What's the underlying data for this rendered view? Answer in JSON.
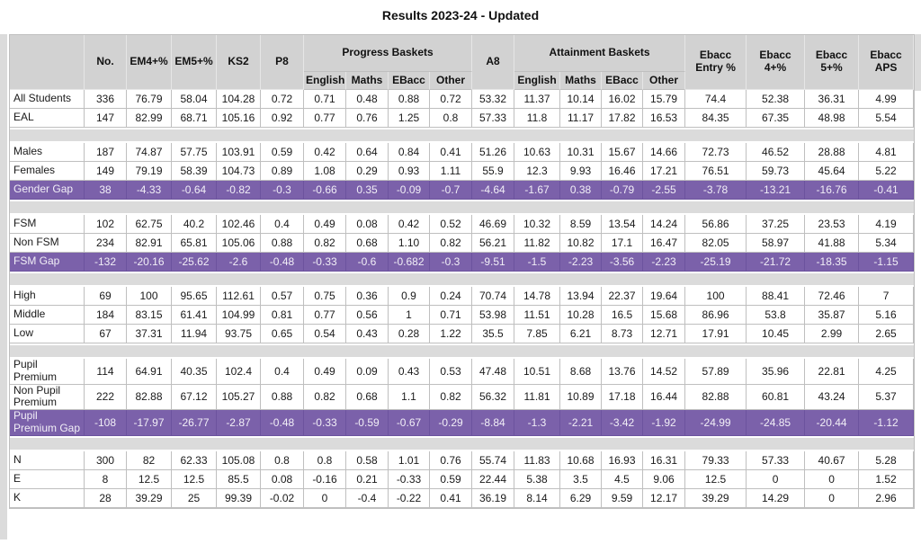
{
  "title": "Results 2023-24 - Updated",
  "colors": {
    "gap_row_bg": "#7B61AA",
    "gap_row_text": "#F2EFF7",
    "header_bg": "#D2D2D2",
    "spacer_bg": "#DBDBDB",
    "border": "#BFBFBF"
  },
  "table": {
    "headers": {
      "no": "No.",
      "em4": "EM4+%",
      "em5": "EM5+%",
      "ks2": "KS2",
      "p8": "P8",
      "progress_group": "Progress Baskets",
      "a8": "A8",
      "attainment_group": "Attainment Baskets",
      "ebacc_entry": "Ebacc Entry %",
      "ebacc_4": "Ebacc 4+%",
      "ebacc_5": "Ebacc 5+%",
      "ebacc_aps": "Ebacc APS"
    },
    "sub_headers": [
      "English",
      "Maths",
      "EBacc",
      "Other"
    ],
    "rows": [
      {
        "type": "data",
        "label": "All Students",
        "values": [
          "336",
          "76.79",
          "58.04",
          "104.28",
          "0.72",
          "0.71",
          "0.48",
          "0.88",
          "0.72",
          "53.32",
          "11.37",
          "10.14",
          "16.02",
          "15.79",
          "74.4",
          "52.38",
          "36.31",
          "4.99"
        ]
      },
      {
        "type": "data",
        "label": "EAL",
        "values": [
          "147",
          "82.99",
          "68.71",
          "105.16",
          "0.92",
          "0.77",
          "0.76",
          "1.25",
          "0.8",
          "57.33",
          "11.8",
          "11.17",
          "17.82",
          "16.53",
          "84.35",
          "67.35",
          "48.98",
          "5.54"
        ]
      },
      {
        "type": "spacer"
      },
      {
        "type": "data",
        "label": "Males",
        "values": [
          "187",
          "74.87",
          "57.75",
          "103.91",
          "0.59",
          "0.42",
          "0.64",
          "0.84",
          "0.41",
          "51.26",
          "10.63",
          "10.31",
          "15.67",
          "14.66",
          "72.73",
          "46.52",
          "28.88",
          "4.81"
        ]
      },
      {
        "type": "data",
        "label": "Females",
        "values": [
          "149",
          "79.19",
          "58.39",
          "104.73",
          "0.89",
          "1.08",
          "0.29",
          "0.93",
          "1.11",
          "55.9",
          "12.3",
          "9.93",
          "16.46",
          "17.21",
          "76.51",
          "59.73",
          "45.64",
          "5.22"
        ]
      },
      {
        "type": "gap",
        "label": "Gender Gap",
        "values": [
          "38",
          "-4.33",
          "-0.64",
          "-0.82",
          "-0.3",
          "-0.66",
          "0.35",
          "-0.09",
          "-0.7",
          "-4.64",
          "-1.67",
          "0.38",
          "-0.79",
          "-2.55",
          "-3.78",
          "-13.21",
          "-16.76",
          "-0.41"
        ]
      },
      {
        "type": "spacer"
      },
      {
        "type": "data",
        "label": "FSM",
        "values": [
          "102",
          "62.75",
          "40.2",
          "102.46",
          "0.4",
          "0.49",
          "0.08",
          "0.42",
          "0.52",
          "46.69",
          "10.32",
          "8.59",
          "13.54",
          "14.24",
          "56.86",
          "37.25",
          "23.53",
          "4.19"
        ]
      },
      {
        "type": "data",
        "label": "Non FSM",
        "values": [
          "234",
          "82.91",
          "65.81",
          "105.06",
          "0.88",
          "0.82",
          "0.68",
          "1.10",
          "0.82",
          "56.21",
          "11.82",
          "10.82",
          "17.1",
          "16.47",
          "82.05",
          "58.97",
          "41.88",
          "5.34"
        ]
      },
      {
        "type": "gap",
        "label": "FSM Gap",
        "values": [
          "-132",
          "-20.16",
          "-25.62",
          "-2.6",
          "-0.48",
          "-0.33",
          "-0.6",
          "-0.682",
          "-0.3",
          "-9.51",
          "-1.5",
          "-2.23",
          "-3.56",
          "-2.23",
          "-25.19",
          "-21.72",
          "-18.35",
          "-1.15"
        ]
      },
      {
        "type": "spacer"
      },
      {
        "type": "data",
        "label": "High",
        "values": [
          "69",
          "100",
          "95.65",
          "112.61",
          "0.57",
          "0.75",
          "0.36",
          "0.9",
          "0.24",
          "70.74",
          "14.78",
          "13.94",
          "22.37",
          "19.64",
          "100",
          "88.41",
          "72.46",
          "7"
        ]
      },
      {
        "type": "data",
        "label": "Middle",
        "values": [
          "184",
          "83.15",
          "61.41",
          "104.99",
          "0.81",
          "0.77",
          "0.56",
          "1",
          "0.71",
          "53.98",
          "11.51",
          "10.28",
          "16.5",
          "15.68",
          "86.96",
          "53.8",
          "35.87",
          "5.16"
        ]
      },
      {
        "type": "data",
        "label": "Low",
        "values": [
          "67",
          "37.31",
          "11.94",
          "93.75",
          "0.65",
          "0.54",
          "0.43",
          "0.28",
          "1.22",
          "35.5",
          "7.85",
          "6.21",
          "8.73",
          "12.71",
          "17.91",
          "10.45",
          "2.99",
          "2.65"
        ]
      },
      {
        "type": "spacer"
      },
      {
        "type": "data",
        "label": "Pupil Premium",
        "values": [
          "114",
          "64.91",
          "40.35",
          "102.4",
          "0.4",
          "0.49",
          "0.09",
          "0.43",
          "0.53",
          "47.48",
          "10.51",
          "8.68",
          "13.76",
          "14.52",
          "57.89",
          "35.96",
          "22.81",
          "4.25"
        ]
      },
      {
        "type": "data",
        "label": "Non Pupil Premium",
        "values": [
          "222",
          "82.88",
          "67.12",
          "105.27",
          "0.88",
          "0.82",
          "0.68",
          "1.1",
          "0.82",
          "56.32",
          "11.81",
          "10.89",
          "17.18",
          "16.44",
          "82.88",
          "60.81",
          "43.24",
          "5.37"
        ]
      },
      {
        "type": "gap",
        "label": "Pupil Premium Gap",
        "values": [
          "-108",
          "-17.97",
          "-26.77",
          "-2.87",
          "-0.48",
          "-0.33",
          "-0.59",
          "-0.67",
          "-0.29",
          "-8.84",
          "-1.3",
          "-2.21",
          "-3.42",
          "-1.92",
          "-24.99",
          "-24.85",
          "-20.44",
          "-1.12"
        ]
      },
      {
        "type": "spacer"
      },
      {
        "type": "data",
        "label": "N",
        "values": [
          "300",
          "82",
          "62.33",
          "105.08",
          "0.8",
          "0.8",
          "0.58",
          "1.01",
          "0.76",
          "55.74",
          "11.83",
          "10.68",
          "16.93",
          "16.31",
          "79.33",
          "57.33",
          "40.67",
          "5.28"
        ]
      },
      {
        "type": "data",
        "label": "E",
        "values": [
          "8",
          "12.5",
          "12.5",
          "85.5",
          "0.08",
          "-0.16",
          "0.21",
          "-0.33",
          "0.59",
          "22.44",
          "5.38",
          "3.5",
          "4.5",
          "9.06",
          "12.5",
          "0",
          "0",
          "1.52"
        ]
      },
      {
        "type": "data",
        "label": "K",
        "values": [
          "28",
          "39.29",
          "25",
          "99.39",
          "-0.02",
          "0",
          "-0.4",
          "-0.22",
          "0.41",
          "36.19",
          "8.14",
          "6.29",
          "9.59",
          "12.17",
          "39.29",
          "14.29",
          "0",
          "2.96"
        ]
      }
    ]
  }
}
